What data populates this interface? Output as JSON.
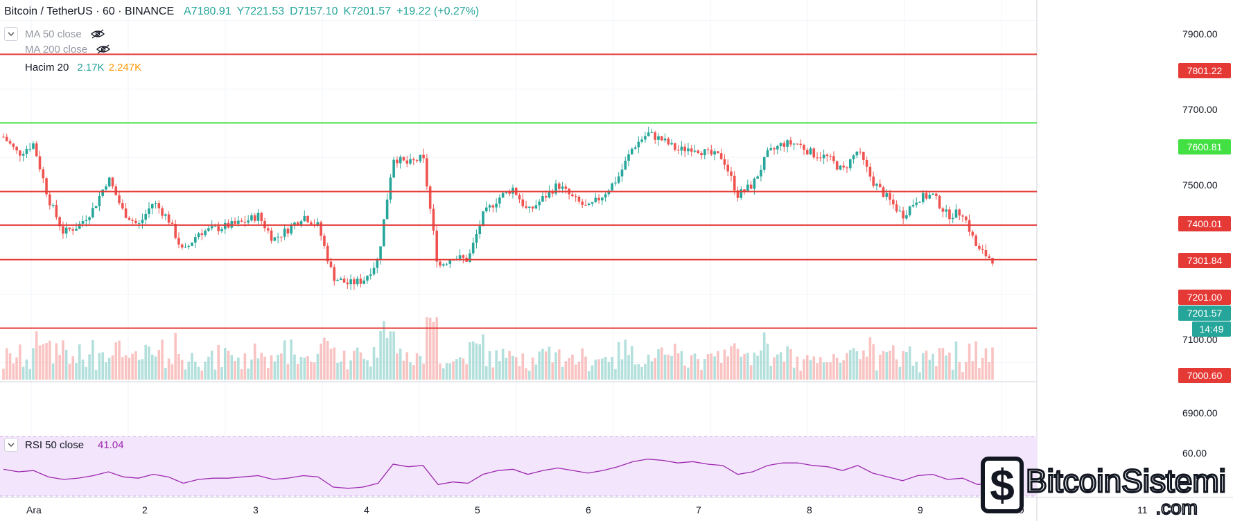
{
  "header": {
    "symbol": "Bitcoin / TetherUS · 60 · BINANCE",
    "open": "A7180.91",
    "high": "Y7221.53",
    "low": "D7157.10",
    "close": "K7201.57",
    "change": "+19.22 (+0.27%)"
  },
  "indicators": {
    "ma50": "MA 50 close",
    "ma200": "MA 200 close",
    "volume_label": "Hacim 20",
    "volume_value": "2.17K",
    "volume_ma": "2.247K",
    "rsi_label": "RSI 50 close",
    "rsi_value": "41.04"
  },
  "price_axis": {
    "ticks": [
      "7900.00",
      "7700.00",
      "7500.00",
      "7400.00",
      "7300.00",
      "7100.00",
      "6900.00"
    ],
    "rsi_tick": "60.00"
  },
  "time_axis": {
    "labels": [
      "Ara",
      "2",
      "3",
      "4",
      "5",
      "6",
      "7",
      "8",
      "9",
      "10",
      "11"
    ]
  },
  "levels": [
    {
      "value": "7801.22",
      "color": "#e53935"
    },
    {
      "value": "7600.81",
      "color": "#43e043"
    },
    {
      "value": "7400.01",
      "color": "#e53935"
    },
    {
      "value": "7301.84",
      "color": "#e53935"
    },
    {
      "value": "7201.00",
      "color": "#e53935"
    },
    {
      "value": "7000.60",
      "color": "#e53935"
    }
  ],
  "last_price": {
    "value": "7201.57",
    "countdown": "14:49",
    "color": "#26a69a"
  },
  "colors": {
    "up": "#26a69a",
    "down": "#ef5350",
    "rsi_line": "#9c27b0",
    "rsi_band": "#f3e5fb"
  },
  "chart_data": {
    "type": "candlestick",
    "x": [
      "Ara",
      "2",
      "3",
      "4",
      "5",
      "6",
      "7",
      "8",
      "9",
      "10",
      "11"
    ],
    "close_path": [
      7560,
      7510,
      7540,
      7380,
      7280,
      7300,
      7350,
      7440,
      7340,
      7300,
      7370,
      7320,
      7220,
      7280,
      7290,
      7300,
      7310,
      7330,
      7260,
      7290,
      7330,
      7300,
      7150,
      7130,
      7140,
      7200,
      7500,
      7480,
      7500,
      7180,
      7210,
      7200,
      7330,
      7380,
      7410,
      7340,
      7380,
      7420,
      7380,
      7350,
      7390,
      7440,
      7530,
      7570,
      7550,
      7520,
      7530,
      7510,
      7500,
      7390,
      7420,
      7510,
      7540,
      7540,
      7510,
      7500,
      7460,
      7520,
      7430,
      7380,
      7330,
      7380,
      7390,
      7330,
      7340,
      7230,
      7201.57
    ],
    "rsi": [
      52,
      50,
      51,
      46,
      44,
      45,
      47,
      50,
      46,
      45,
      48,
      46,
      41,
      44,
      45,
      45,
      46,
      47,
      44,
      45,
      47,
      46,
      38,
      37,
      38,
      41,
      56,
      54,
      55,
      40,
      42,
      41,
      48,
      51,
      52,
      48,
      51,
      53,
      51,
      49,
      51,
      54,
      58,
      60,
      59,
      57,
      58,
      56,
      55,
      48,
      50,
      55,
      57,
      57,
      55,
      54,
      51,
      55,
      49,
      46,
      43,
      47,
      48,
      44,
      45,
      40,
      41.04
    ],
    "ylim": [
      6850,
      7960
    ],
    "rsi_ylim": [
      20,
      80
    ]
  },
  "watermark": {
    "text": "BitcoinSistemi",
    "sub": ".com"
  }
}
